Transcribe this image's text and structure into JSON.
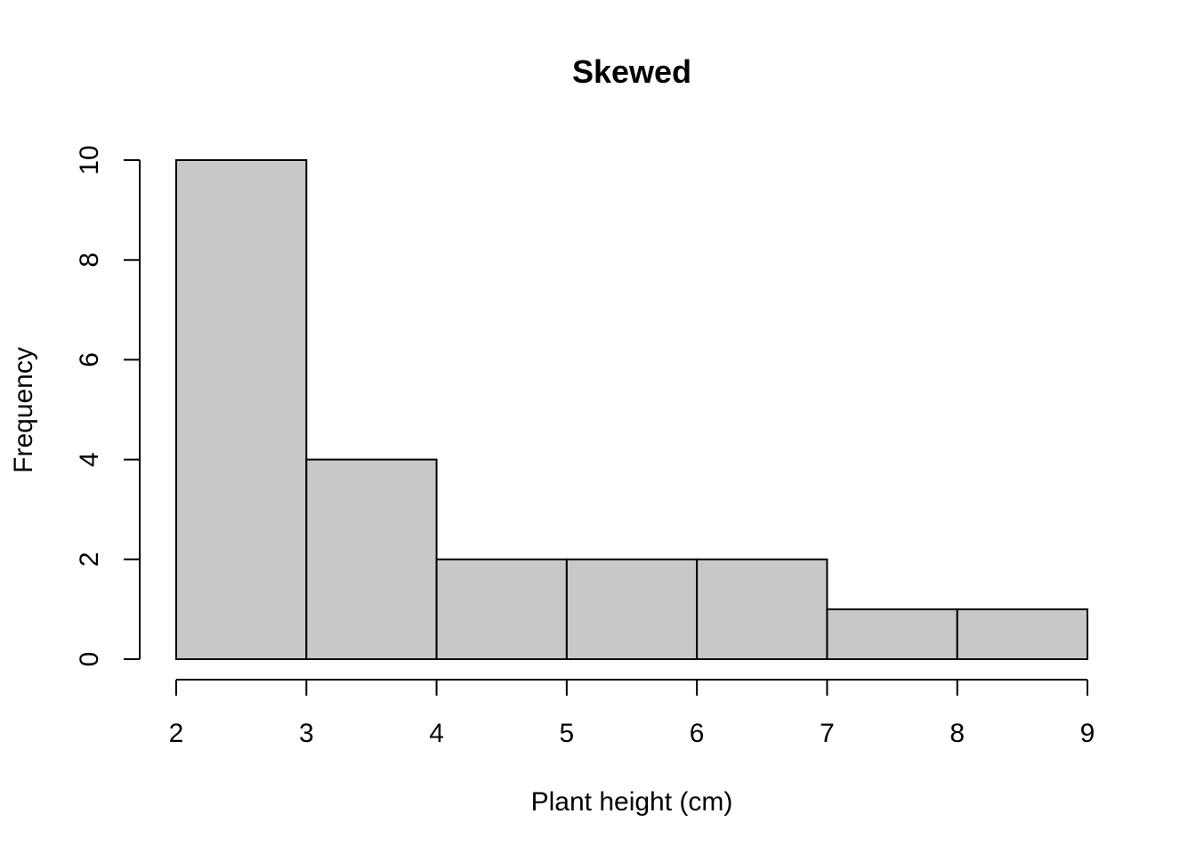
{
  "chart_data": {
    "type": "bar",
    "subtype": "histogram",
    "title": "Skewed",
    "xlabel": "Plant height (cm)",
    "ylabel": "Frequency",
    "bins": [
      {
        "x0": 2,
        "x1": 3,
        "count": 10
      },
      {
        "x0": 3,
        "x1": 4,
        "count": 4
      },
      {
        "x0": 4,
        "x1": 5,
        "count": 2
      },
      {
        "x0": 5,
        "x1": 6,
        "count": 2
      },
      {
        "x0": 6,
        "x1": 7,
        "count": 2
      },
      {
        "x0": 7,
        "x1": 8,
        "count": 1
      },
      {
        "x0": 8,
        "x1": 9,
        "count": 1
      }
    ],
    "xlim": [
      2,
      9
    ],
    "ylim": [
      0,
      10
    ],
    "xticks": [
      2,
      3,
      4,
      5,
      6,
      7,
      8,
      9
    ],
    "yticks": [
      0,
      2,
      4,
      6,
      8,
      10
    ],
    "bar_color": "#c8c8c8",
    "grid": false,
    "legend": "none"
  }
}
